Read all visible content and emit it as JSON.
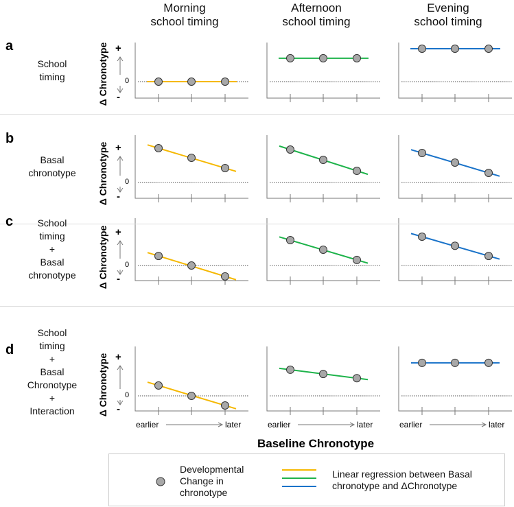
{
  "columns": [
    "Morning\nschool timing",
    "Afternoon\nschool timing",
    "Evening\nschool timing"
  ],
  "column_lines": [
    [
      "Morning",
      "school timing"
    ],
    [
      "Afternoon",
      "school timing"
    ],
    [
      "Evening",
      "school timing"
    ]
  ],
  "rows": [
    {
      "letter": "a",
      "label": [
        "School",
        "timing"
      ],
      "values": [
        [
          0,
          0,
          0
        ],
        [
          0.71,
          0.71,
          0.71
        ],
        [
          1,
          1,
          1
        ]
      ]
    },
    {
      "letter": "b",
      "label": [
        "Basal",
        "chronotype"
      ],
      "values": [
        [
          1,
          0.72,
          0.42
        ],
        [
          0.96,
          0.66,
          0.34
        ],
        [
          0.86,
          0.58,
          0.28
        ]
      ]
    },
    {
      "letter": "c",
      "label": [
        "School",
        "timing",
        "+",
        "Basal",
        "chronotype"
      ],
      "values": [
        [
          0.29,
          0,
          -0.33
        ],
        [
          0.77,
          0.48,
          0.17
        ],
        [
          0.875,
          0.6,
          0.29
        ]
      ]
    },
    {
      "letter": "d",
      "label": [
        "School",
        "timing",
        "+",
        "Basal",
        "Chronotype",
        "+",
        "Interaction"
      ],
      "values": [
        [
          0.27,
          0,
          -0.25
        ],
        [
          0.68,
          0.57,
          0.46
        ],
        [
          0.86,
          0.86,
          0.86
        ]
      ]
    }
  ],
  "y_axis": {
    "label": "Δ Chronotype",
    "plus": "+",
    "minus": "-",
    "zero": "0"
  },
  "x_axis": {
    "label": "Baseline Chronotype",
    "earlier": "earlier",
    "later": "later"
  },
  "colors": {
    "morning": "#f5b800",
    "afternoon": "#1db34a",
    "evening": "#1a73c9",
    "point": "#a8a8a8"
  },
  "legend": {
    "point_label": [
      "Developmental",
      "Change in",
      "chronotype"
    ],
    "line_label": [
      "Linear regression between Basal",
      "chronotype and ΔChronotype"
    ]
  }
}
